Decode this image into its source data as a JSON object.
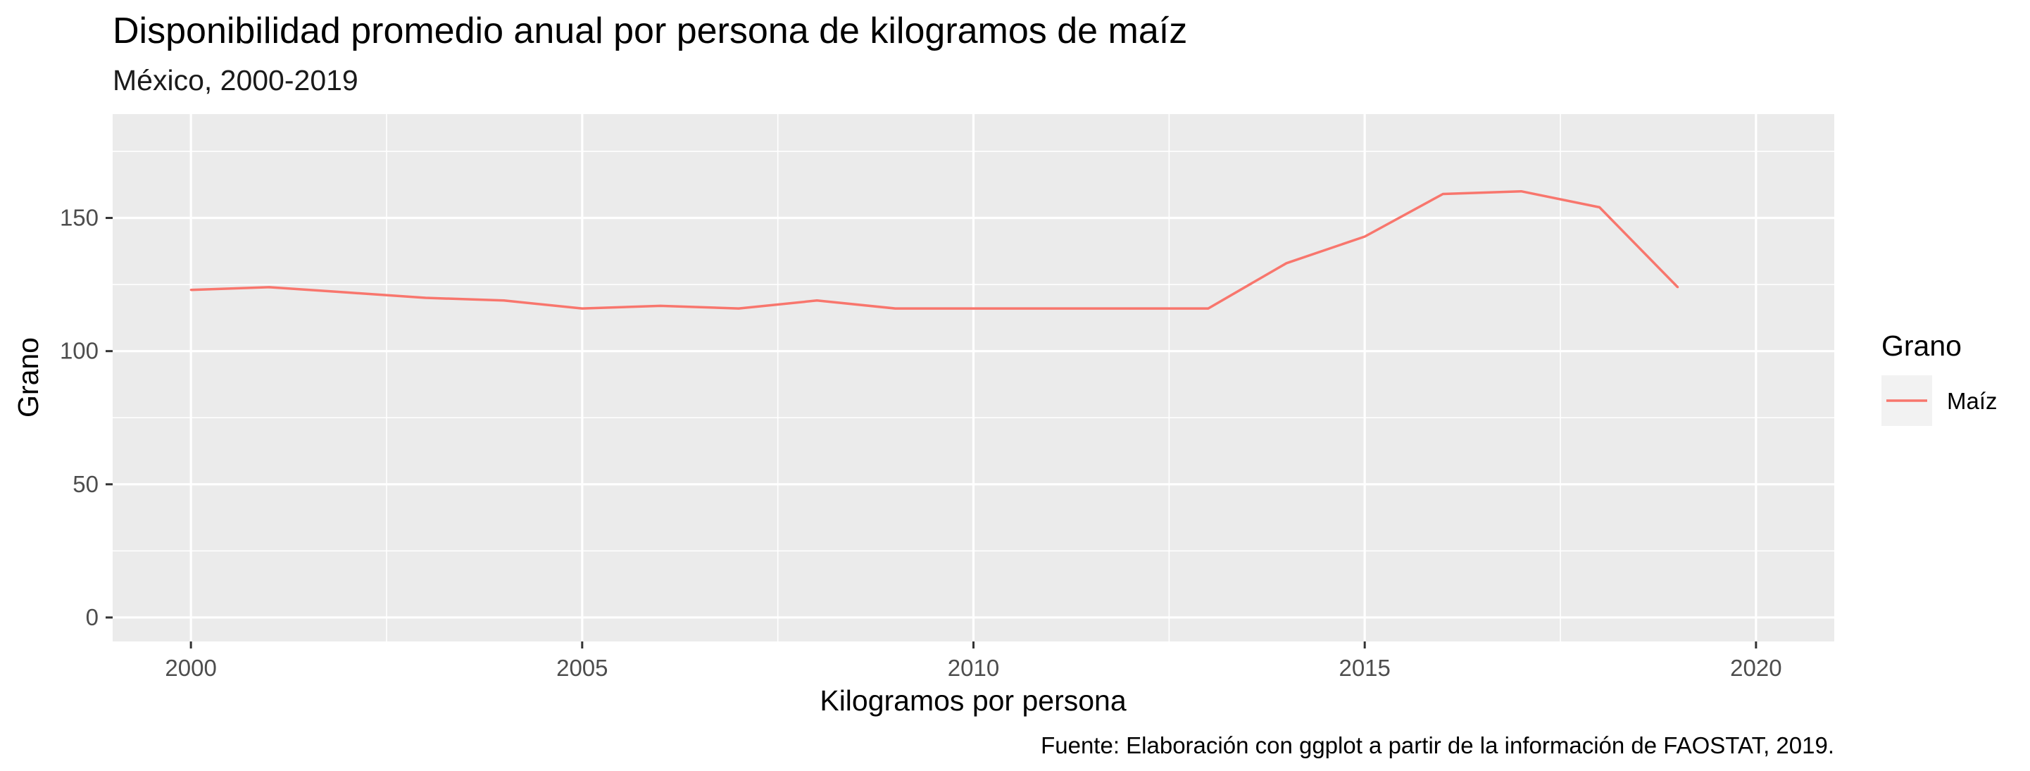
{
  "chart_data": {
    "type": "line",
    "title": "Disponibilidad promedio anual por persona de kilogramos de maíz",
    "subtitle": "México, 2000-2019",
    "xlabel": "Kilogramos por persona",
    "ylabel": "Grano",
    "caption": "Fuente: Elaboración con ggplot a partir de la información de FAOSTAT, 2019.",
    "xlim": [
      1999,
      2021
    ],
    "ylim": [
      -9,
      189
    ],
    "x_ticks": [
      2000,
      2005,
      2010,
      2015,
      2020
    ],
    "y_ticks": [
      0,
      50,
      100,
      150
    ],
    "grid": true,
    "legend": {
      "title": "Grano",
      "position": "right"
    },
    "x": [
      2000,
      2001,
      2002,
      2003,
      2004,
      2005,
      2006,
      2007,
      2008,
      2009,
      2010,
      2011,
      2012,
      2013,
      2014,
      2015,
      2016,
      2017,
      2018,
      2019
    ],
    "series": [
      {
        "name": "Maíz",
        "color": "#F8766D",
        "values": [
          123,
          124,
          122,
          120,
          119,
          116,
          117,
          116,
          119,
          116,
          116,
          116,
          116,
          116,
          133,
          143,
          159,
          160,
          154,
          124
        ]
      }
    ]
  },
  "colors": {
    "panel_background": "#EBEBEB",
    "grid_major": "#FFFFFF",
    "series_line": "#F8766D",
    "tick_text": "#4D4D4D"
  }
}
